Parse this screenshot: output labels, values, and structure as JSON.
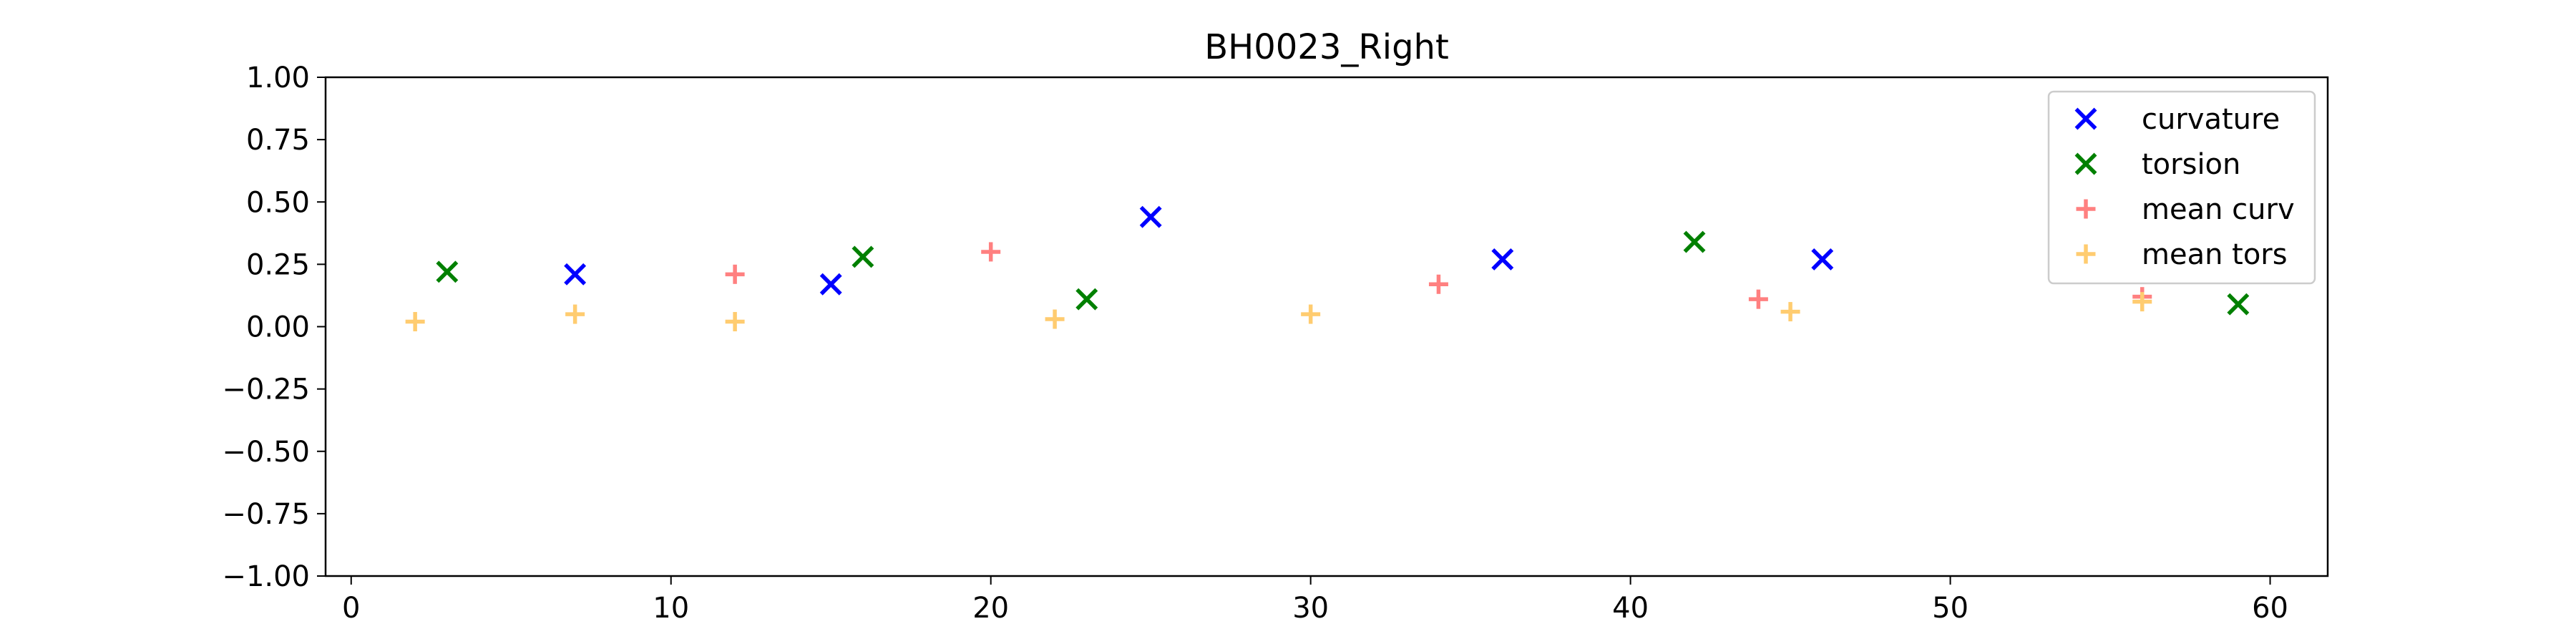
{
  "chart_data": {
    "type": "scatter",
    "title": "BH0023_Right",
    "xlabel": "",
    "ylabel": "",
    "xlim": [
      -0.8,
      61.8
    ],
    "ylim": [
      -1.0,
      1.0
    ],
    "grid": false,
    "legend_position": "top-right",
    "x_ticks": [
      0,
      10,
      20,
      30,
      40,
      50,
      60
    ],
    "x_tick_labels": [
      "0",
      "10",
      "20",
      "30",
      "40",
      "50",
      "60"
    ],
    "y_ticks": [
      1.0,
      0.75,
      0.5,
      0.25,
      0.0,
      -0.25,
      -0.5,
      -0.75,
      -1.0
    ],
    "y_tick_labels": [
      "1.00",
      "0.75",
      "0.50",
      "0.25",
      "0.00",
      "−0.25",
      "−0.50",
      "−0.75",
      "−1.00"
    ],
    "series": [
      {
        "name": "curvature",
        "marker": "x",
        "color": "#0000ff",
        "points": [
          [
            7,
            0.21
          ],
          [
            15,
            0.17
          ],
          [
            25,
            0.44
          ],
          [
            36,
            0.27
          ],
          [
            46,
            0.27
          ]
        ]
      },
      {
        "name": "torsion",
        "marker": "x",
        "color": "#008000",
        "points": [
          [
            3,
            0.22
          ],
          [
            16,
            0.28
          ],
          [
            23,
            0.11
          ],
          [
            42,
            0.34
          ],
          [
            59,
            0.09
          ]
        ]
      },
      {
        "name": "mean curv",
        "marker": "+",
        "color": "#ff8080",
        "points": [
          [
            12,
            0.21
          ],
          [
            20,
            0.3
          ],
          [
            34,
            0.17
          ],
          [
            44,
            0.11
          ],
          [
            56,
            0.12
          ]
        ]
      },
      {
        "name": "mean tors",
        "marker": "+",
        "color": "#ffcc70",
        "points": [
          [
            2,
            0.02
          ],
          [
            7,
            0.05
          ],
          [
            12,
            0.02
          ],
          [
            22,
            0.03
          ],
          [
            30,
            0.05
          ],
          [
            45,
            0.06
          ],
          [
            56,
            0.1
          ]
        ]
      }
    ]
  }
}
